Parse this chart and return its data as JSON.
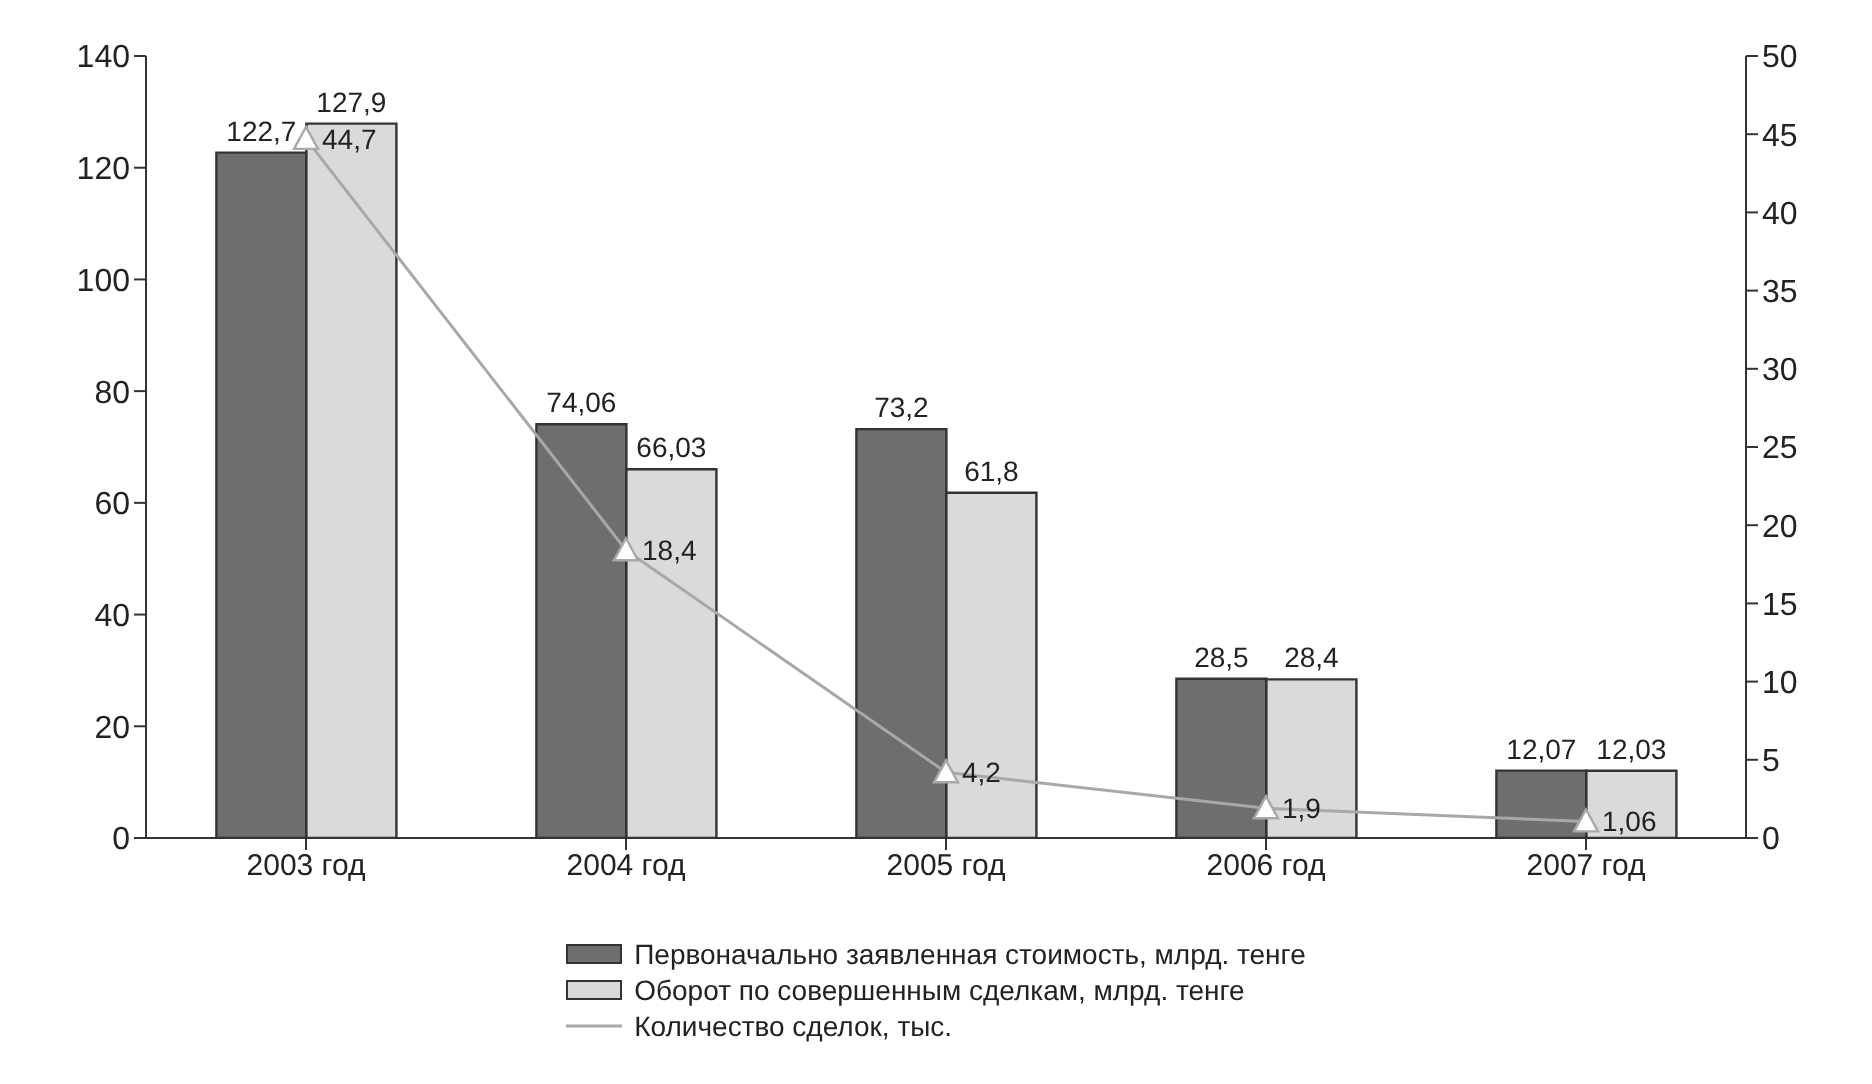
{
  "chart_data": {
    "type": "bar",
    "categories": [
      "2003 год",
      "2004 год",
      "2005 год",
      "2006 год",
      "2007 год"
    ],
    "series": [
      {
        "name": "Первоначально заявленная стоимость, млрд. тенге",
        "color": "#6e6e6e",
        "values": [
          122.7,
          74.06,
          73.2,
          28.5,
          12.07
        ],
        "value_labels": [
          "122,7",
          "74,06",
          "73,2",
          "28,5",
          "12,07"
        ]
      },
      {
        "name": "Оборот по совершенным сделкам, млрд. тенге",
        "color": "#dadada",
        "values": [
          127.9,
          66.03,
          61.8,
          28.4,
          12.03
        ],
        "value_labels": [
          "127,9",
          "66,03",
          "61,8",
          "28,4",
          "12,03"
        ]
      },
      {
        "name": "Количество сделок, тыс.",
        "type": "line",
        "axis": "y2",
        "color": "#a8a8a8",
        "marker": "triangle",
        "line_style": "solid",
        "values": [
          44.7,
          18.4,
          4.2,
          1.9,
          1.06
        ],
        "value_labels": [
          "44,7",
          "18,4",
          "4,2",
          "1,9",
          "1,06"
        ]
      }
    ],
    "ylim": [
      0,
      140
    ],
    "yticks": [
      0,
      20,
      40,
      60,
      80,
      100,
      120,
      140
    ],
    "y2lim": [
      0,
      50
    ],
    "y2ticks": [
      0,
      5,
      10,
      15,
      20,
      25,
      30,
      35,
      40,
      45,
      50
    ],
    "grid": false,
    "legend": "bottom"
  }
}
